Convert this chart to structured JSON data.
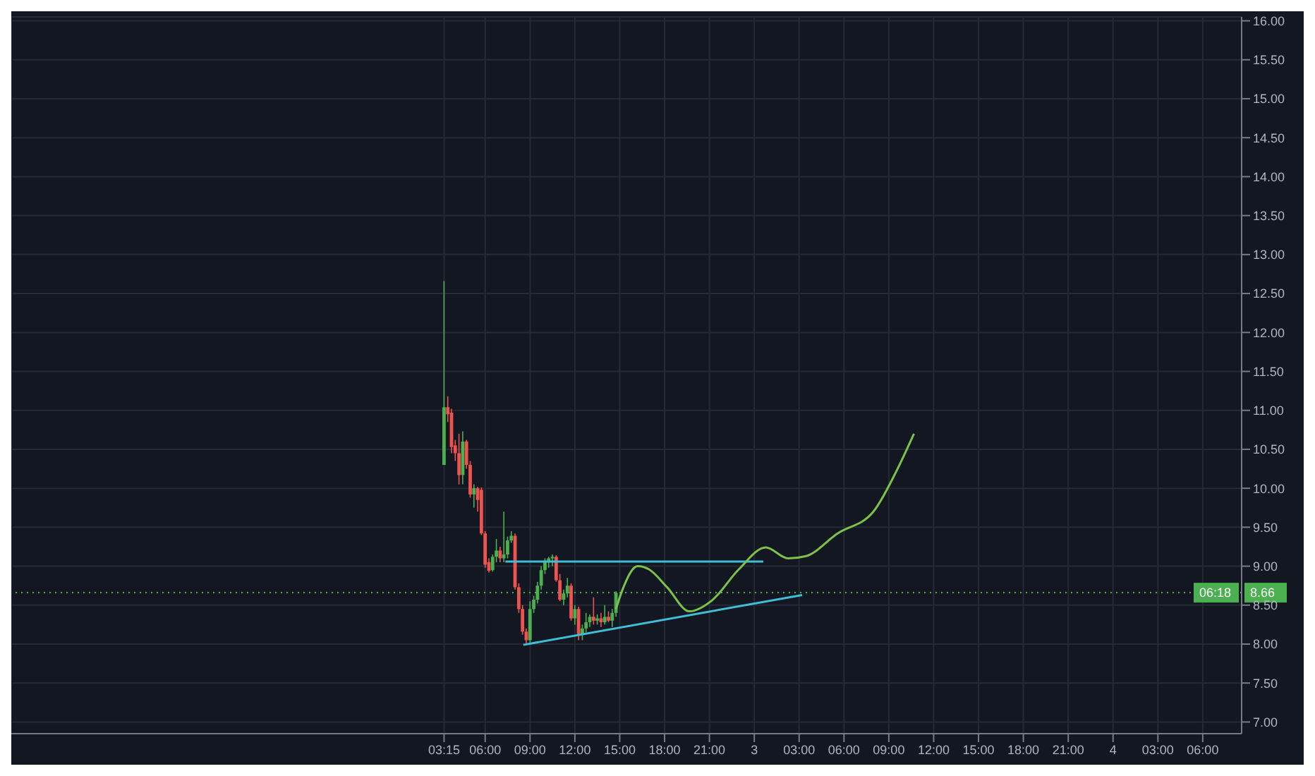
{
  "chart_data": {
    "type": "candlestick",
    "x": [
      "--02-02T03:15",
      "--02-02T03:30",
      "--02-02T03:45",
      "--02-02T04:00",
      "--02-02T04:15",
      "--02-02T04:30",
      "--02-02T04:45",
      "--02-02T05:00",
      "--02-02T05:15",
      "--02-02T05:30",
      "--02-02T05:45",
      "--02-02T06:00",
      "--02-02T06:15",
      "--02-02T06:30",
      "--02-02T06:45",
      "--02-02T07:00",
      "--02-02T07:15",
      "--02-02T07:30",
      "--02-02T07:45",
      "--02-02T08:00",
      "--02-02T08:15",
      "--02-02T08:30",
      "--02-02T08:45",
      "--02-02T09:00",
      "--02-02T09:15",
      "--02-02T09:30",
      "--02-02T09:45",
      "--02-02T10:00",
      "--02-02T10:15",
      "--02-02T10:30",
      "--02-02T10:45",
      "--02-02T11:00",
      "--02-02T11:15",
      "--02-02T11:30",
      "--02-02T11:45",
      "--02-02T12:00",
      "--02-02T12:15",
      "--02-02T12:30",
      "--02-02T12:45",
      "--02-02T13:00",
      "--02-02T13:15",
      "--02-02T13:30",
      "--02-02T13:45",
      "--02-02T14:00",
      "--02-02T14:15",
      "--02-02T14:30",
      "--02-02T14:45"
    ],
    "ohlc": [
      [
        10.3,
        12.66,
        10.3,
        11.04
      ],
      [
        11.04,
        11.18,
        10.85,
        10.95
      ],
      [
        10.97,
        11.02,
        10.45,
        10.53
      ],
      [
        10.55,
        10.62,
        10.35,
        10.45
      ],
      [
        10.45,
        10.7,
        10.05,
        10.17
      ],
      [
        10.17,
        10.73,
        10.05,
        10.6
      ],
      [
        10.6,
        10.62,
        10.25,
        10.3
      ],
      [
        10.3,
        10.35,
        9.88,
        9.92
      ],
      [
        9.92,
        10.05,
        9.75,
        10.0
      ],
      [
        10.0,
        10.02,
        9.7,
        9.85
      ],
      [
        9.98,
        10.01,
        9.4,
        9.42
      ],
      [
        9.42,
        9.45,
        8.98,
        9.02
      ],
      [
        9.05,
        9.1,
        8.92,
        8.94
      ],
      [
        8.95,
        9.15,
        8.93,
        9.12
      ],
      [
        9.12,
        9.35,
        9.05,
        9.2
      ],
      [
        9.2,
        9.25,
        9.05,
        9.1
      ],
      [
        9.1,
        9.7,
        9.05,
        9.15
      ],
      [
        9.15,
        9.38,
        9.1,
        9.33
      ],
      [
        9.33,
        9.45,
        9.3,
        9.39
      ],
      [
        9.39,
        9.42,
        8.7,
        8.73
      ],
      [
        8.73,
        8.78,
        8.4,
        8.45
      ],
      [
        8.45,
        8.5,
        8.12,
        8.16
      ],
      [
        8.16,
        8.2,
        8.0,
        8.05
      ],
      [
        8.05,
        8.55,
        8.02,
        8.45
      ],
      [
        8.45,
        8.62,
        8.4,
        8.57
      ],
      [
        8.57,
        8.8,
        8.52,
        8.75
      ],
      [
        8.75,
        9.0,
        8.7,
        8.95
      ],
      [
        8.95,
        9.1,
        8.9,
        9.05
      ],
      [
        9.05,
        9.12,
        8.98,
        9.1
      ],
      [
        9.1,
        9.15,
        9.0,
        9.12
      ],
      [
        9.12,
        9.14,
        8.8,
        8.82
      ],
      [
        8.82,
        8.9,
        8.55,
        8.57
      ],
      [
        8.57,
        8.7,
        8.5,
        8.65
      ],
      [
        8.65,
        8.85,
        8.6,
        8.75
      ],
      [
        8.75,
        8.78,
        8.3,
        8.33
      ],
      [
        8.33,
        8.5,
        8.25,
        8.45
      ],
      [
        8.45,
        8.48,
        8.05,
        8.13
      ],
      [
        8.13,
        8.25,
        8.05,
        8.2
      ],
      [
        8.2,
        8.4,
        8.15,
        8.28
      ],
      [
        8.28,
        8.38,
        8.22,
        8.35
      ],
      [
        8.35,
        8.6,
        8.25,
        8.3
      ],
      [
        8.3,
        8.38,
        8.25,
        8.33
      ],
      [
        8.33,
        8.4,
        8.22,
        8.28
      ],
      [
        8.28,
        8.5,
        8.25,
        8.35
      ],
      [
        8.35,
        8.42,
        8.28,
        8.3
      ],
      [
        8.3,
        8.45,
        8.22,
        8.4
      ],
      [
        8.4,
        8.68,
        8.35,
        8.66
      ]
    ],
    "colors": [
      "#4caf50",
      "#ef5350",
      "#ef5350",
      "#ef5350",
      "#ef5350",
      "#4caf50",
      "#ef5350",
      "#ef5350",
      "#4caf50",
      "#ef5350",
      "#ef5350",
      "#ef5350",
      "#ef5350",
      "#4caf50",
      "#4caf50",
      "#ef5350",
      "#4caf50",
      "#4caf50",
      "#4caf50",
      "#ef5350",
      "#ef5350",
      "#ef5350",
      "#ef5350",
      "#4caf50",
      "#4caf50",
      "#4caf50",
      "#4caf50",
      "#4caf50",
      "#4caf50",
      "#4caf50",
      "#ef5350",
      "#ef5350",
      "#4caf50",
      "#4caf50",
      "#ef5350",
      "#4caf50",
      "#ef5350",
      "#4caf50",
      "#4caf50",
      "#4caf50",
      "#ef5350",
      "#4caf50",
      "#ef5350",
      "#4caf50",
      "#ef5350",
      "#4caf50",
      "#4caf50"
    ],
    "series": [
      {
        "type": "line",
        "color": "#42bdd6",
        "x": [
          "--02-02T07:21",
          "--02-03T00:36"
        ],
        "values": [
          9.06,
          9.06
        ]
      },
      {
        "type": "line",
        "color": "#42bdd6",
        "x": [
          "--02-02T08:33",
          "--02-03T03:12"
        ],
        "values": [
          7.99,
          8.63
        ]
      },
      {
        "type": "line",
        "color": "#7cc14a",
        "x": [
          "--02-02T14:45",
          "--02-02T15:09",
          "--02-02T16:12",
          "--02-02T16:57",
          "--02-02T18:10",
          "--02-02T19:40",
          "--02-02T21:10",
          "--02-02T22:58",
          "--02-03T00:46",
          "--02-03T02:16",
          "--02-03T03:28",
          "--02-03T05:34",
          "--02-03T07:58",
          "--02-03T09:29",
          "--02-03T10:41"
        ],
        "values": [
          8.45,
          8.68,
          9.0,
          8.96,
          8.73,
          8.42,
          8.56,
          8.96,
          9.24,
          9.1,
          9.13,
          9.42,
          9.7,
          10.21,
          10.7
        ]
      }
    ],
    "xlim": [
      "--01-31T22:18",
      "--02-04T08:36"
    ],
    "xticks": [
      {
        "value": "--02-02T03:15",
        "label": "03:15"
      },
      {
        "value": "--02-02T06:00",
        "label": "06:00"
      },
      {
        "value": "--02-02T09:00",
        "label": "09:00"
      },
      {
        "value": "--02-02T12:00",
        "label": "12:00"
      },
      {
        "value": "--02-02T15:00",
        "label": "15:00"
      },
      {
        "value": "--02-02T18:00",
        "label": "18:00"
      },
      {
        "value": "--02-02T21:00",
        "label": "21:00"
      },
      {
        "value": "--02-03",
        "label": "3"
      },
      {
        "value": "--02-03T03:00",
        "label": "03:00"
      },
      {
        "value": "--02-03T06:00",
        "label": "06:00"
      },
      {
        "value": "--02-03T09:00",
        "label": "09:00"
      },
      {
        "value": "--02-03T12:00",
        "label": "12:00"
      },
      {
        "value": "--02-03T15:00",
        "label": "15:00"
      },
      {
        "value": "--02-03T18:00",
        "label": "18:00"
      },
      {
        "value": "--02-03T21:00",
        "label": "21:00"
      },
      {
        "value": "--02-04",
        "label": "4"
      },
      {
        "value": "--02-04T03:00",
        "label": "03:00"
      },
      {
        "value": "--02-04T06:00",
        "label": "06:00"
      }
    ],
    "ylim": [
      6.85,
      16.05
    ],
    "yticks": [
      {
        "value": 7,
        "label": "7.00"
      },
      {
        "value": 7.5,
        "label": "7.50"
      },
      {
        "value": 8,
        "label": "8.00"
      },
      {
        "value": 8.5,
        "label": "8.50"
      },
      {
        "value": 9,
        "label": "9.00"
      },
      {
        "value": 9.5,
        "label": "9.50"
      },
      {
        "value": 10,
        "label": "10.00"
      },
      {
        "value": 10.5,
        "label": "10.50"
      },
      {
        "value": 11,
        "label": "11.00"
      },
      {
        "value": 11.5,
        "label": "11.50"
      },
      {
        "value": 12,
        "label": "12.00"
      },
      {
        "value": 12.5,
        "label": "12.50"
      },
      {
        "value": 13,
        "label": "13.00"
      },
      {
        "value": 13.5,
        "label": "13.50"
      },
      {
        "value": 14,
        "label": "14.00"
      },
      {
        "value": 14.5,
        "label": "14.50"
      },
      {
        "value": 15,
        "label": "15.00"
      },
      {
        "value": 15.5,
        "label": "15.50"
      },
      {
        "value": 16,
        "label": "16.00"
      }
    ],
    "ref_lines": [
      {
        "axis": "y",
        "value": 8.66,
        "label": "8.66",
        "color": "#4caf50",
        "line_style": "dotted"
      }
    ],
    "annotations": [
      "06:18"
    ],
    "grid": true
  }
}
